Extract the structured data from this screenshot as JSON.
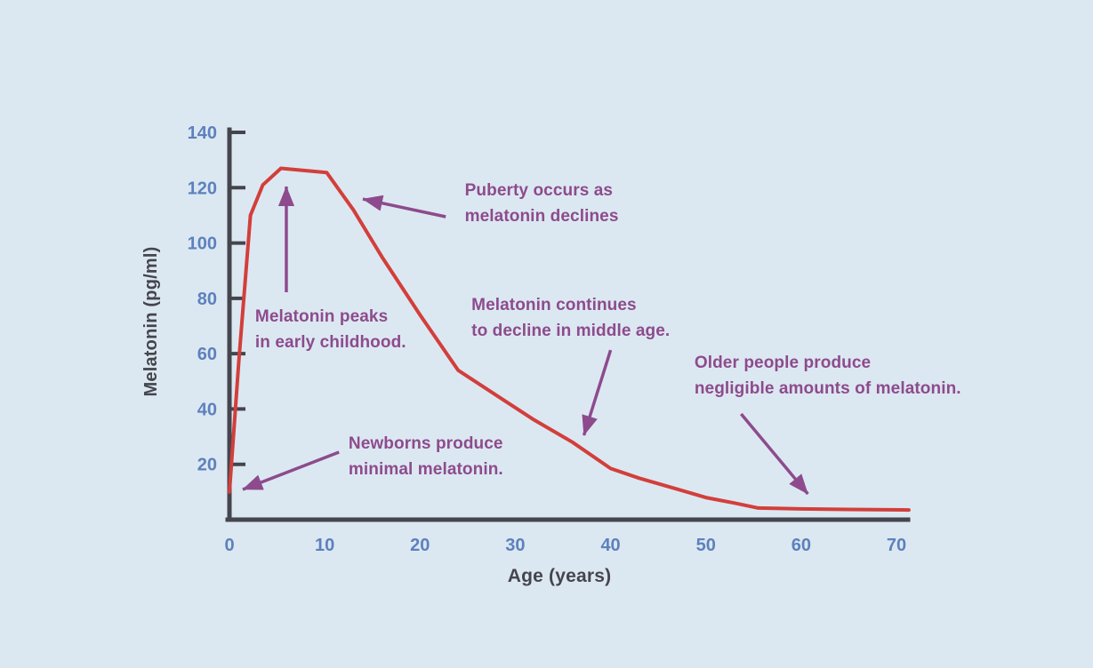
{
  "chart_data": {
    "type": "line",
    "title": "",
    "xlabel": "Age (years)",
    "ylabel": "Melatonin (pg/ml)",
    "xlim": [
      0,
      71
    ],
    "ylim": [
      0,
      145
    ],
    "xticks": [
      0,
      10,
      20,
      30,
      40,
      50,
      60,
      70
    ],
    "yticks": [
      20,
      40,
      60,
      80,
      100,
      120,
      140
    ],
    "grid": false,
    "legend": null,
    "units": "pg/ml",
    "series": [
      {
        "name": "melatonin-level",
        "color": "#d23f3b",
        "points": [
          [
            0,
            10
          ],
          [
            1,
            58
          ],
          [
            2.2,
            110
          ],
          [
            3.5,
            121
          ],
          [
            5.4,
            127
          ],
          [
            10.2,
            125.5
          ],
          [
            13,
            112
          ],
          [
            16,
            95
          ],
          [
            20,
            74
          ],
          [
            24,
            54
          ],
          [
            28,
            45
          ],
          [
            32,
            36
          ],
          [
            36,
            28
          ],
          [
            40,
            18.5
          ],
          [
            43,
            15
          ],
          [
            47,
            11
          ],
          [
            50,
            8
          ],
          [
            53,
            6
          ],
          [
            55.5,
            4.2
          ],
          [
            60,
            3.9
          ],
          [
            65,
            3.7
          ],
          [
            71.3,
            3.5
          ]
        ]
      }
    ],
    "annotations": [
      {
        "id": "peak",
        "lines": [
          "Melatonin peaks",
          "in early childhood."
        ],
        "text_pos": [
          2.7,
          77.1
        ],
        "arrow_from": [
          5.97,
          82.2
        ],
        "arrow_to": [
          5.97,
          120.4
        ]
      },
      {
        "id": "puberty",
        "lines": [
          "Puberty occurs as",
          "melatonin declines"
        ],
        "text_pos": [
          24.7,
          122.7
        ],
        "arrow_from": [
          22.7,
          109.5
        ],
        "arrow_to": [
          14.0,
          115.9
        ]
      },
      {
        "id": "newborns",
        "lines": [
          "Newborns produce",
          "minimal melatonin."
        ],
        "text_pos": [
          12.5,
          31.2
        ],
        "arrow_from": [
          11.5,
          24.4
        ],
        "arrow_to": [
          1.4,
          10.9
        ]
      },
      {
        "id": "middle-age",
        "lines": [
          "Melatonin continues",
          "to decline in middle age."
        ],
        "text_pos": [
          25.4,
          81.2
        ],
        "arrow_from": [
          40.0,
          61.3
        ],
        "arrow_to": [
          37.2,
          30.5
        ]
      },
      {
        "id": "older-people",
        "lines": [
          "Older people produce",
          "negligible amounts of melatonin."
        ],
        "text_pos": [
          48.8,
          60.4
        ],
        "arrow_from": [
          53.7,
          38.2
        ],
        "arrow_to": [
          60.7,
          9.3
        ]
      }
    ],
    "colors": {
      "background": "#dce8f1",
      "curve": "#d23f3b",
      "annotation_text": "#8d4b8d",
      "arrow": "#8d4b8d",
      "tick_label": "#5d81bd",
      "axis": "#45454e",
      "axis_label": "#45454e"
    }
  }
}
